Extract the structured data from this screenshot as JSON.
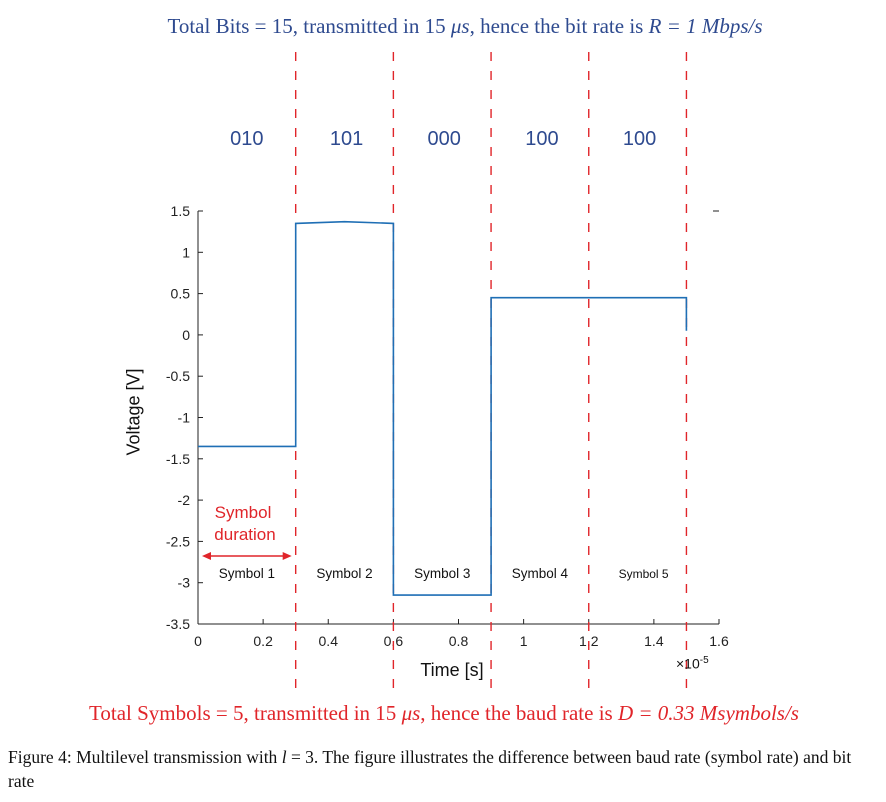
{
  "top_caption": {
    "prefix": "Total Bits = 15, transmitted in 15 ",
    "unit": "μs",
    "middle": ", hence the bit rate is ",
    "formula": "R = 1 Mbps/s"
  },
  "bottom_caption": {
    "prefix": "Total Symbols = 5, transmitted in 15 ",
    "unit": "μs",
    "middle": ", hence the baud rate is ",
    "formula": "D = 0.33 Msymbols/s"
  },
  "figure_caption": {
    "label": "Figure 4:",
    "text_before": " Multilevel transmission with ",
    "var": "l",
    "text_after": " = 3. The figure illustrates the difference between baud rate (symbol rate) and bit rate"
  },
  "annotation": {
    "symbol_duration_line1": "Symbol",
    "symbol_duration_line2": "duration"
  },
  "colors": {
    "signal": "#1f6fb5",
    "divider": "#e0252a",
    "bits": "#2e4a8f",
    "annotation": "#e0252a"
  },
  "chart_data": {
    "type": "line",
    "xlabel": "Time [s]",
    "ylabel": "Voltage [V]",
    "x_exponent": "×10",
    "x_exponent_power": "-5",
    "xlim": [
      0,
      1.6
    ],
    "ylim": [
      -3.5,
      1.5
    ],
    "xticks": [
      0,
      0.2,
      0.4,
      0.6,
      0.8,
      1,
      1.2,
      1.4,
      1.6
    ],
    "xtick_labels": [
      "0",
      "0.2",
      "0.4",
      "0.6",
      "0.8",
      "1",
      "1.2",
      "1.4",
      "1.6"
    ],
    "yticks": [
      1.5,
      1,
      0.5,
      0,
      -0.5,
      -1,
      -1.5,
      -2,
      -2.5,
      -3,
      -3.5
    ],
    "ytick_labels": [
      "1.5",
      "1",
      "0.5",
      "0",
      "-0.5",
      "-1",
      "-1.5",
      "-2",
      "-2.5",
      "-3",
      "-3.5"
    ],
    "series": [
      {
        "x": [
          0,
          0.3,
          0.3,
          0.45,
          0.6,
          0.6,
          0.9,
          0.9,
          1.5,
          1.5
        ],
        "y": [
          -1.35,
          -1.35,
          1.35,
          1.37,
          1.35,
          -3.15,
          -3.15,
          0.45,
          0.45,
          0.05
        ]
      }
    ],
    "symbol_boundaries": [
      0.3,
      0.6,
      0.9,
      1.2,
      1.5
    ],
    "bit_groups": [
      "010",
      "101",
      "000",
      "100",
      "100"
    ],
    "symbol_labels": [
      "Symbol 1",
      "Symbol 2",
      "Symbol 3",
      "Symbol 4",
      "Symbol 5"
    ]
  }
}
